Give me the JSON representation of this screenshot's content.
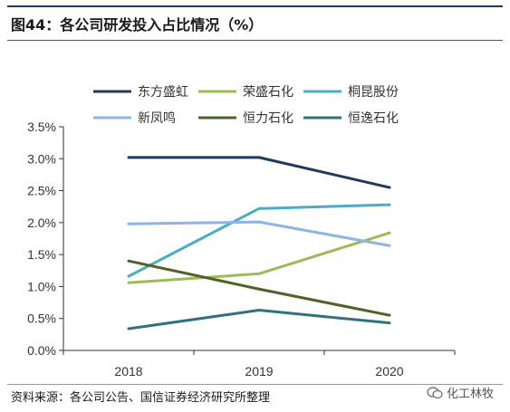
{
  "header": {
    "title": "图44：各公司研发投入占比情况（%）"
  },
  "footer": {
    "source": "资料来源：各公司公告、国信证券经济研究所整理"
  },
  "watermark": {
    "text": "化工林牧",
    "icon": "wechat-icon"
  },
  "chart_data": {
    "type": "line",
    "categories": [
      "2018",
      "2019",
      "2020"
    ],
    "ylim": [
      0,
      3.5
    ],
    "yticks": [
      0,
      0.5,
      1.0,
      1.5,
      2.0,
      2.5,
      3.0,
      3.5
    ],
    "ytick_labels": [
      "0.0%",
      "0.5%",
      "1.0%",
      "1.5%",
      "2.0%",
      "2.5%",
      "3.0%",
      "3.5%"
    ],
    "legend_placement": "top",
    "grid": false,
    "series": [
      {
        "name": "东方盛虹",
        "values": [
          3.02,
          3.02,
          2.55
        ],
        "color": "#1f3a5f"
      },
      {
        "name": "荣盛石化",
        "values": [
          1.06,
          1.2,
          1.84
        ],
        "color": "#9bbb59"
      },
      {
        "name": "桐昆股份",
        "values": [
          1.16,
          2.22,
          2.28
        ],
        "color": "#4bacc6"
      },
      {
        "name": "新凤鸣",
        "values": [
          1.98,
          2.01,
          1.64
        ],
        "color": "#8eb4e3"
      },
      {
        "name": "恒力石化",
        "values": [
          1.4,
          0.96,
          0.55
        ],
        "color": "#4f6228"
      },
      {
        "name": "恒逸石化",
        "values": [
          0.34,
          0.63,
          0.43
        ],
        "color": "#31707f"
      }
    ]
  }
}
